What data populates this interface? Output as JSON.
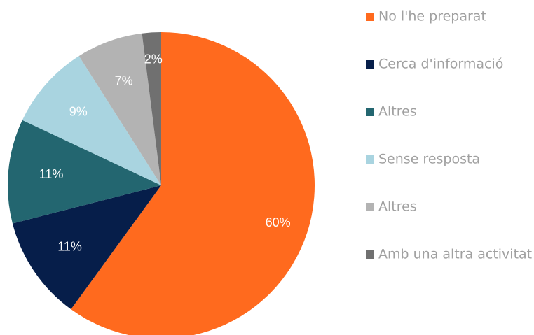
{
  "chart_data": {
    "type": "pie",
    "categories": [
      "No l'he preparat",
      "Cerca d'informació",
      "Altres",
      "Sense resposta",
      "Altres",
      "Amb una altra activitat"
    ],
    "values": [
      60,
      11,
      11,
      9,
      7,
      2
    ],
    "value_labels": [
      "60%",
      "11%",
      "11%",
      "9%",
      "7%",
      "2%"
    ],
    "colors": [
      "#ff6a1e",
      "#061e4a",
      "#236670",
      "#a9d4e0",
      "#b3b3b3",
      "#707070"
    ],
    "legend": "right"
  }
}
